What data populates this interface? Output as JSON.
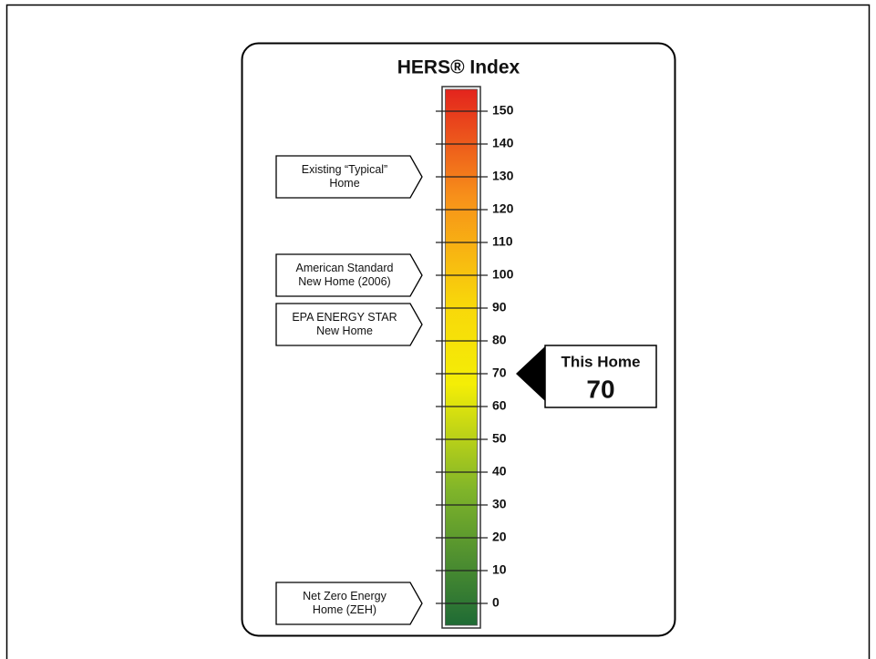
{
  "chart_data": {
    "type": "gauge",
    "title": "HERS® Index",
    "ylim": [
      -7.5,
      157.5
    ],
    "yticks": [
      0,
      10,
      20,
      30,
      40,
      50,
      60,
      70,
      80,
      90,
      100,
      110,
      120,
      130,
      140,
      150
    ],
    "annotations": [
      {
        "lines": [
          "Existing “Typical”",
          "Home"
        ],
        "value": 130
      },
      {
        "lines": [
          "American Standard",
          "New Home (2006)"
        ],
        "value": 100
      },
      {
        "lines": [
          "EPA ENERGY STAR",
          "New Home"
        ],
        "value": 85
      },
      {
        "lines": [
          "Net Zero Energy",
          "Home (ZEH)"
        ],
        "value": 0
      }
    ],
    "marker": {
      "label": "This Home",
      "value": 70,
      "value_label": "70"
    }
  }
}
